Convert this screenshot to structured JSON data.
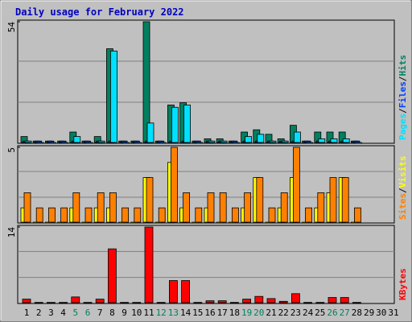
{
  "chart_data": [
    {
      "type": "bar",
      "title": "Daily usage for February 2022",
      "ylim": [
        0,
        54
      ],
      "yticks": [
        54
      ],
      "series": [
        {
          "name": "Hits",
          "color": "#008060",
          "values": [
            3,
            1,
            1,
            1,
            5,
            1,
            3,
            42,
            1,
            1,
            54,
            1,
            17,
            18,
            1,
            2,
            2,
            1,
            5,
            6,
            4,
            2,
            8,
            1,
            5,
            5,
            5,
            1,
            null,
            null,
            null
          ]
        },
        {
          "name": "Files",
          "color": "#0040ff",
          "values": [
            1,
            1,
            1,
            1,
            1,
            1,
            1,
            1,
            1,
            1,
            1,
            1,
            1,
            1,
            1,
            1,
            1,
            1,
            1,
            1,
            1,
            1,
            1,
            1,
            1,
            1,
            1,
            1,
            null,
            null,
            null
          ]
        },
        {
          "name": "Pages",
          "color": "#00e0ff",
          "values": [
            1,
            0,
            0,
            0,
            3,
            0,
            1,
            41,
            0,
            0,
            9,
            0,
            16,
            17,
            0,
            1,
            1,
            0,
            3,
            4,
            1,
            1,
            5,
            0,
            2,
            2,
            2,
            0,
            null,
            null,
            null
          ]
        }
      ]
    },
    {
      "type": "bar",
      "ylim": [
        0,
        5
      ],
      "yticks": [
        5
      ],
      "series": [
        {
          "name": "Visits",
          "color": "#ffff00",
          "values": [
            1,
            0,
            0,
            0,
            1,
            0,
            1,
            1,
            0,
            0,
            3,
            0,
            4,
            1,
            0,
            1,
            0,
            0,
            1,
            3,
            0,
            1,
            3,
            0,
            1,
            2,
            3,
            0,
            null,
            null,
            null
          ]
        },
        {
          "name": "Sites",
          "color": "#ff8000",
          "values": [
            2,
            1,
            1,
            1,
            2,
            1,
            2,
            2,
            1,
            1,
            3,
            1,
            5,
            2,
            1,
            2,
            2,
            1,
            2,
            3,
            1,
            2,
            5,
            1,
            2,
            3,
            3,
            1,
            null,
            null,
            null
          ]
        }
      ]
    },
    {
      "type": "bar",
      "ylim": [
        0,
        14
      ],
      "yticks": [
        14
      ],
      "categories": [
        "1",
        "2",
        "3",
        "4",
        "5",
        "6",
        "7",
        "8",
        "9",
        "10",
        "11",
        "12",
        "13",
        "14",
        "15",
        "16",
        "17",
        "18",
        "19",
        "20",
        "21",
        "22",
        "23",
        "24",
        "25",
        "26",
        "27",
        "28",
        "29",
        "30",
        "31"
      ],
      "category_colors": [
        "#000000",
        "#000000",
        "#000000",
        "#000000",
        "#008060",
        "#008060",
        "#000000",
        "#000000",
        "#000000",
        "#000000",
        "#000000",
        "#008060",
        "#008060",
        "#000000",
        "#000000",
        "#000000",
        "#000000",
        "#000000",
        "#008060",
        "#008060",
        "#000000",
        "#000000",
        "#000000",
        "#000000",
        "#000000",
        "#008060",
        "#008060",
        "#000000",
        "#000000",
        "#000000",
        "#000000"
      ],
      "series": [
        {
          "name": "KBytes",
          "color": "#ff0000",
          "values": [
            0.8,
            0.2,
            0.2,
            0.2,
            1.2,
            0.2,
            0.8,
            10,
            0.2,
            0.2,
            14,
            0.2,
            4.2,
            4.2,
            0.2,
            0.5,
            0.5,
            0.2,
            0.8,
            1.3,
            0.9,
            0.4,
            1.8,
            0.2,
            0.2,
            1.1,
            1.1,
            0.2,
            null,
            null,
            null
          ]
        }
      ]
    }
  ]
}
